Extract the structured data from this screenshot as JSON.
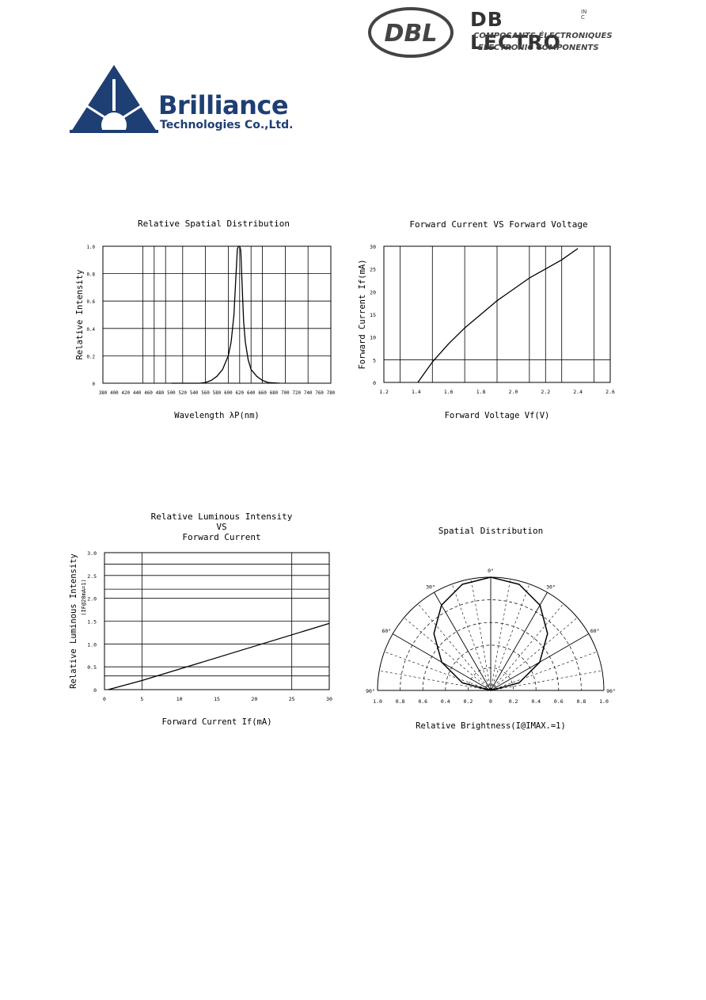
{
  "logos": {
    "brilliance": {
      "name": "Brilliance",
      "subtitle": "Technologies Co.,Ltd.",
      "color": "#1e3f73"
    },
    "dblectro": {
      "mark": "DBL",
      "name": "DB LECTRO",
      "inc": "INC",
      "line1": "COMPOSANTS ÉLECTRONIQUES",
      "line2": "ELECTRONIC COMPONENTS"
    }
  },
  "chart_data": [
    {
      "type": "line",
      "title": "Relative Spatial Distribution",
      "xlabel": "Wavelength λP(nm)",
      "ylabel": "Relative Intensity",
      "x_ticks": [
        "380",
        "400",
        "420",
        "440",
        "460",
        "480",
        "500",
        "520",
        "540",
        "560",
        "580",
        "600",
        "620",
        "640",
        "660",
        "680",
        "700",
        "720",
        "740",
        "760",
        "780"
      ],
      "y_ticks": [
        "0",
        "0.2",
        "0.4",
        "0.6",
        "0.8",
        "1.0"
      ],
      "xlim": [
        380,
        780
      ],
      "ylim": [
        0,
        1.0
      ],
      "series": [
        {
          "x": [
            500,
            530,
            550,
            560,
            570,
            580,
            590,
            600,
            605,
            610,
            613,
            616,
            618,
            620,
            622,
            624,
            627,
            630,
            635,
            640,
            650,
            660,
            670,
            690
          ],
          "y": [
            0.0,
            0.0,
            0.0,
            0.005,
            0.02,
            0.05,
            0.1,
            0.2,
            0.3,
            0.5,
            0.75,
            0.98,
            1.0,
            1.0,
            0.97,
            0.75,
            0.45,
            0.3,
            0.17,
            0.1,
            0.05,
            0.02,
            0.005,
            0.0
          ]
        }
      ],
      "grid": true
    },
    {
      "type": "line",
      "title": "Forward Current VS Forward Voltage",
      "xlabel": "Forward Voltage Vf(V)",
      "ylabel": "Forward Current If(mA)",
      "x_ticks": [
        "1.2",
        "1.4",
        "1.6",
        "1.8",
        "2.0",
        "2.2",
        "2.4",
        "2.6"
      ],
      "y_ticks": [
        "0",
        "5",
        "10",
        "15",
        "20",
        "25",
        "30"
      ],
      "xlim": [
        1.2,
        2.6
      ],
      "ylim": [
        0,
        30
      ],
      "series": [
        {
          "x": [
            1.41,
            1.45,
            1.5,
            1.6,
            1.7,
            1.8,
            1.9,
            2.0,
            2.1,
            2.2,
            2.3,
            2.4
          ],
          "y": [
            0,
            2,
            4.5,
            8.5,
            12,
            15,
            18,
            20.5,
            23,
            25,
            27,
            29.5
          ]
        }
      ],
      "grid": true
    },
    {
      "type": "line",
      "title": "Relative Luminous Intensity",
      "title_line2": "VS",
      "title_line3": "Forward Current",
      "xlabel": "Forward Current If(mA)",
      "ylabel": "Relative Luminous Intensity",
      "ylabel_sub": "(IF@20mA=1)",
      "x_ticks": [
        "0",
        "5",
        "10",
        "15",
        "20",
        "25",
        "30"
      ],
      "y_ticks": [
        "0",
        "0.5",
        "1.0",
        "1.5",
        "2.0",
        "2.5",
        "3.0"
      ],
      "xlim": [
        0,
        30
      ],
      "ylim": [
        0,
        3.0
      ],
      "series": [
        {
          "x": [
            0.5,
            5,
            30
          ],
          "y": [
            0,
            0.2,
            1.45
          ]
        }
      ],
      "grid": true
    },
    {
      "type": "polar",
      "title": "Spatial Distribution",
      "xlabel": "Relative Brightness(I@IMAX.=1)",
      "angle_labels": [
        "0°",
        "30°",
        "30°",
        "60°",
        "60°",
        "90°",
        "90°"
      ],
      "radial_ticks": [
        "1.0",
        "0.8",
        "0.6",
        "0.4",
        "0.2",
        "0",
        "0.2",
        "0.4",
        "0.6",
        "0.8",
        "1.0"
      ],
      "series": [
        {
          "angle": [
            -90,
            -75,
            -60,
            -45,
            -30,
            -15,
            0,
            15,
            30,
            45,
            60,
            75,
            90
          ],
          "value": [
            0,
            0.26,
            0.5,
            0.71,
            0.87,
            0.97,
            1.0,
            0.97,
            0.87,
            0.71,
            0.5,
            0.26,
            0
          ]
        }
      ],
      "grid": true
    }
  ]
}
